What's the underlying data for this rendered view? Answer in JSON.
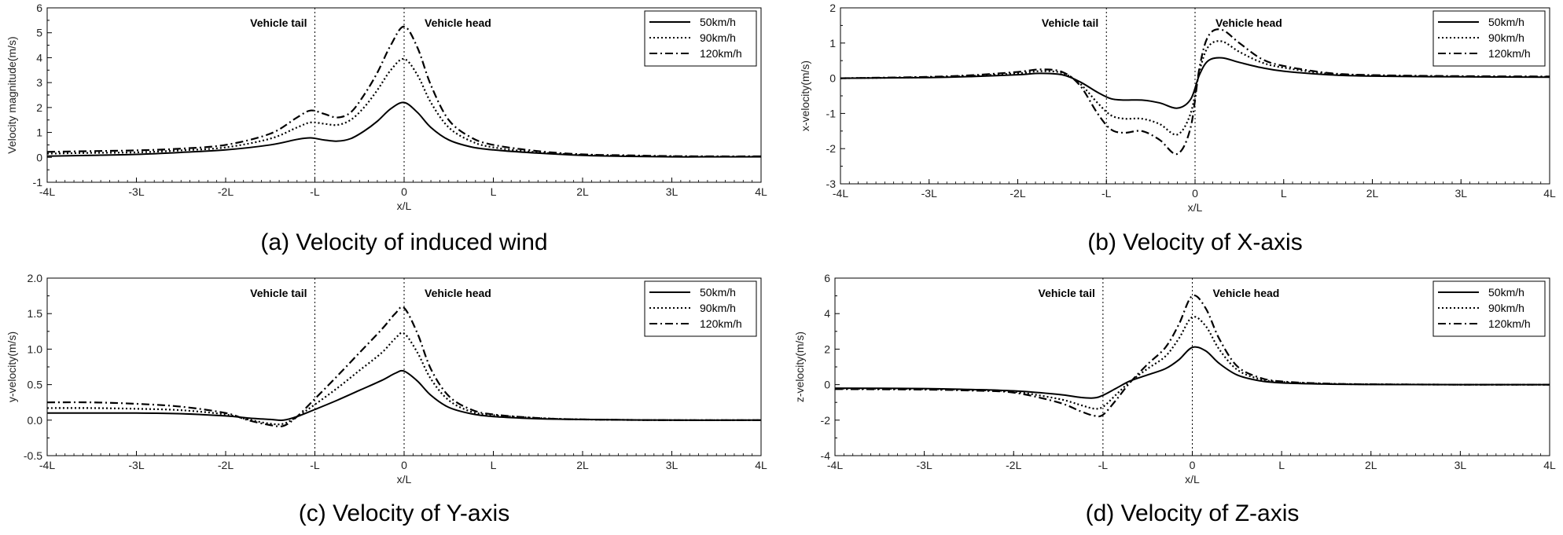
{
  "chart_data": [
    {
      "type": "line",
      "caption": "(a) Velocity of induced wind",
      "xlabel": "x/L",
      "ylabel": "Velocity magnitude(m/s)",
      "xlim": [
        -4,
        4
      ],
      "ylim": [
        -1,
        6
      ],
      "yticks": [
        -1,
        0,
        1,
        2,
        3,
        4,
        5,
        6
      ],
      "yticklabels": [
        "-1",
        "0",
        "1",
        "2",
        "3",
        "4",
        "5",
        "6"
      ],
      "xticks": [
        -4,
        -3,
        -2,
        -1,
        0,
        1,
        2,
        3,
        4
      ],
      "xticklabels": [
        "-4L",
        "-3L",
        "-2L",
        "-L",
        "0",
        "L",
        "2L",
        "3L",
        "4L"
      ],
      "legend_position": "top-right",
      "annotations": [
        {
          "text": "Vehicle tail",
          "x": -1
        },
        {
          "text": "Vehicle head",
          "x": 0
        }
      ],
      "series": [
        {
          "name": "50km/h",
          "style": "solid",
          "x": [
            -4,
            -3.5,
            -3,
            -2.5,
            -2,
            -1.5,
            -1.2,
            -1.05,
            -0.9,
            -0.75,
            -0.6,
            -0.45,
            -0.3,
            -0.15,
            0,
            0.15,
            0.3,
            0.5,
            0.75,
            1,
            1.5,
            2,
            2.5,
            3,
            3.5,
            4
          ],
          "y": [
            0.05,
            0.08,
            0.12,
            0.2,
            0.3,
            0.5,
            0.72,
            0.78,
            0.7,
            0.65,
            0.75,
            1.05,
            1.45,
            1.95,
            2.2,
            1.8,
            1.2,
            0.7,
            0.42,
            0.3,
            0.17,
            0.08,
            0.04,
            0.02,
            0.02,
            0.02
          ]
        },
        {
          "name": "90km/h",
          "style": "dotted",
          "x": [
            -4,
            -3.5,
            -3,
            -2.5,
            -2,
            -1.5,
            -1.2,
            -1.05,
            -0.9,
            -0.75,
            -0.6,
            -0.45,
            -0.3,
            -0.15,
            0,
            0.15,
            0.3,
            0.5,
            0.75,
            1,
            1.5,
            2,
            2.5,
            3,
            3.5,
            4
          ],
          "y": [
            0.15,
            0.18,
            0.2,
            0.28,
            0.4,
            0.75,
            1.2,
            1.4,
            1.35,
            1.3,
            1.5,
            2.0,
            2.7,
            3.5,
            3.95,
            3.3,
            2.2,
            1.2,
            0.65,
            0.4,
            0.2,
            0.1,
            0.06,
            0.04,
            0.03,
            0.03
          ]
        },
        {
          "name": "120km/h",
          "style": "dashdot",
          "x": [
            -4,
            -3.5,
            -3,
            -2.5,
            -2,
            -1.5,
            -1.2,
            -1.05,
            -0.9,
            -0.75,
            -0.6,
            -0.45,
            -0.3,
            -0.15,
            0,
            0.15,
            0.3,
            0.5,
            0.75,
            1,
            1.5,
            2,
            2.5,
            3,
            3.5,
            4
          ],
          "y": [
            0.22,
            0.25,
            0.28,
            0.35,
            0.5,
            0.95,
            1.6,
            1.88,
            1.75,
            1.6,
            1.8,
            2.5,
            3.4,
            4.5,
            5.25,
            4.4,
            2.9,
            1.5,
            0.8,
            0.5,
            0.25,
            0.12,
            0.08,
            0.05,
            0.04,
            0.04
          ]
        }
      ]
    },
    {
      "type": "line",
      "caption": "(b) Velocity of X-axis",
      "xlabel": "x/L",
      "ylabel": "x-velocity(m/s)",
      "xlim": [
        -4,
        4
      ],
      "ylim": [
        -3,
        2
      ],
      "yticks": [
        -3,
        -2,
        -1,
        0,
        1,
        2
      ],
      "yticklabels": [
        "-3",
        "-2",
        "-1",
        "0",
        "1",
        "2"
      ],
      "xticks": [
        -4,
        -3,
        -2,
        -1,
        0,
        1,
        2,
        3,
        4
      ],
      "xticklabels": [
        "-4L",
        "-3L",
        "-2L",
        "-L",
        "0",
        "L",
        "2L",
        "3L",
        "4L"
      ],
      "legend_position": "top-right",
      "annotations": [
        {
          "text": "Vehicle tail",
          "x": -1
        },
        {
          "text": "Vehicle head",
          "x": 0
        }
      ],
      "series": [
        {
          "name": "50km/h",
          "style": "solid",
          "x": [
            -4,
            -3,
            -2.5,
            -2,
            -1.75,
            -1.5,
            -1.3,
            -1.1,
            -0.95,
            -0.8,
            -0.6,
            -0.4,
            -0.2,
            -0.05,
            0.05,
            0.15,
            0.3,
            0.5,
            0.75,
            1,
            1.5,
            2,
            3,
            4
          ],
          "y": [
            0,
            0.02,
            0.05,
            0.1,
            0.14,
            0.1,
            -0.1,
            -0.4,
            -0.58,
            -0.62,
            -0.62,
            -0.7,
            -0.85,
            -0.6,
            0.1,
            0.5,
            0.58,
            0.45,
            0.3,
            0.2,
            0.1,
            0.06,
            0.04,
            0.03
          ]
        },
        {
          "name": "90km/h",
          "style": "dotted",
          "x": [
            -4,
            -3,
            -2.5,
            -2,
            -1.75,
            -1.5,
            -1.3,
            -1.1,
            -0.95,
            -0.8,
            -0.6,
            -0.4,
            -0.2,
            -0.05,
            0.05,
            0.15,
            0.3,
            0.5,
            0.75,
            1,
            1.5,
            2,
            3,
            4
          ],
          "y": [
            0,
            0.03,
            0.07,
            0.14,
            0.2,
            0.15,
            -0.15,
            -0.7,
            -1.05,
            -1.15,
            -1.15,
            -1.3,
            -1.6,
            -1.0,
            0.2,
            0.9,
            1.05,
            0.75,
            0.45,
            0.3,
            0.13,
            0.08,
            0.05,
            0.04
          ]
        },
        {
          "name": "120km/h",
          "style": "dashdot",
          "x": [
            -4,
            -3,
            -2.5,
            -2,
            -1.75,
            -1.5,
            -1.3,
            -1.1,
            -0.95,
            -0.8,
            -0.6,
            -0.4,
            -0.2,
            -0.05,
            0.05,
            0.15,
            0.3,
            0.5,
            0.75,
            1,
            1.5,
            2,
            3,
            4
          ],
          "y": [
            0,
            0.04,
            0.09,
            0.18,
            0.25,
            0.18,
            -0.2,
            -1.0,
            -1.45,
            -1.55,
            -1.5,
            -1.75,
            -2.15,
            -1.4,
            0.3,
            1.2,
            1.38,
            1.0,
            0.55,
            0.35,
            0.15,
            0.09,
            0.06,
            0.05
          ]
        }
      ]
    },
    {
      "type": "line",
      "caption": "(c) Velocity of Y-axis",
      "xlabel": "x/L",
      "ylabel": "y-velocity(m/s)",
      "xlim": [
        -4,
        4
      ],
      "ylim": [
        -0.5,
        2.0
      ],
      "yticks": [
        -0.5,
        0,
        0.5,
        1,
        1.5,
        2
      ],
      "yticklabels": [
        "-0.5",
        "0.0",
        "0.5",
        "1.0",
        "1.5",
        "2.0"
      ],
      "xticks": [
        -4,
        -3,
        -2,
        -1,
        0,
        1,
        2,
        3,
        4
      ],
      "xticklabels": [
        "-4L",
        "-3L",
        "-2L",
        "-L",
        "0",
        "L",
        "2L",
        "3L",
        "4L"
      ],
      "legend_position": "top-right",
      "annotations": [
        {
          "text": "Vehicle tail",
          "x": -1
        },
        {
          "text": "Vehicle head",
          "x": 0
        }
      ],
      "series": [
        {
          "name": "50km/h",
          "style": "solid",
          "x": [
            -4,
            -3.5,
            -3,
            -2.5,
            -2,
            -1.75,
            -1.5,
            -1.35,
            -1.2,
            -1,
            -0.75,
            -0.5,
            -0.25,
            -0.1,
            0,
            0.15,
            0.3,
            0.5,
            0.75,
            1,
            1.5,
            2,
            3,
            4
          ],
          "y": [
            0.1,
            0.1,
            0.1,
            0.09,
            0.06,
            0.03,
            0.01,
            0.0,
            0.05,
            0.15,
            0.28,
            0.42,
            0.56,
            0.66,
            0.69,
            0.55,
            0.35,
            0.18,
            0.09,
            0.05,
            0.02,
            0.01,
            0.0,
            0.0
          ]
        },
        {
          "name": "90km/h",
          "style": "dotted",
          "x": [
            -4,
            -3.5,
            -3,
            -2.5,
            -2,
            -1.75,
            -1.5,
            -1.35,
            -1.2,
            -1,
            -0.75,
            -0.5,
            -0.25,
            -0.1,
            0,
            0.15,
            0.3,
            0.5,
            0.75,
            1,
            1.5,
            2,
            3,
            4
          ],
          "y": [
            0.17,
            0.17,
            0.16,
            0.14,
            0.08,
            0.01,
            -0.05,
            -0.05,
            0.05,
            0.22,
            0.45,
            0.7,
            0.95,
            1.15,
            1.22,
            0.95,
            0.58,
            0.28,
            0.12,
            0.07,
            0.03,
            0.01,
            0.0,
            0.0
          ]
        },
        {
          "name": "120km/h",
          "style": "dashdot",
          "x": [
            -4,
            -3.5,
            -3,
            -2.5,
            -2,
            -1.75,
            -1.5,
            -1.35,
            -1.2,
            -1,
            -0.75,
            -0.5,
            -0.25,
            -0.1,
            0,
            0.15,
            0.3,
            0.5,
            0.75,
            1,
            1.5,
            2,
            3,
            4
          ],
          "y": [
            0.25,
            0.25,
            0.23,
            0.19,
            0.1,
            0.0,
            -0.07,
            -0.08,
            0.05,
            0.3,
            0.62,
            0.95,
            1.28,
            1.5,
            1.58,
            1.22,
            0.72,
            0.34,
            0.15,
            0.08,
            0.03,
            0.01,
            0.0,
            0.0
          ]
        }
      ]
    },
    {
      "type": "line",
      "caption": "(d) Velocity of Z-axis",
      "xlabel": "x/L",
      "ylabel": "z-velocity(m/s)",
      "xlim": [
        -4,
        4
      ],
      "ylim": [
        -4,
        6
      ],
      "yticks": [
        -4,
        -2,
        0,
        2,
        4,
        6
      ],
      "yticklabels": [
        "-4",
        "-2",
        "0",
        "2",
        "4",
        "6"
      ],
      "xticks": [
        -4,
        -3,
        -2,
        -1,
        0,
        1,
        2,
        3,
        4
      ],
      "xticklabels": [
        "-4L",
        "-3L",
        "-2L",
        "-L",
        "0",
        "L",
        "2L",
        "3L",
        "4L"
      ],
      "legend_position": "top-right",
      "annotations": [
        {
          "text": "Vehicle tail",
          "x": -1
        },
        {
          "text": "Vehicle head",
          "x": 0
        }
      ],
      "series": [
        {
          "name": "50km/h",
          "style": "solid",
          "x": [
            -4,
            -3,
            -2.5,
            -2,
            -1.5,
            -1.25,
            -1.1,
            -1.0,
            -0.85,
            -0.7,
            -0.5,
            -0.3,
            -0.15,
            0,
            0.15,
            0.3,
            0.5,
            0.75,
            1,
            1.5,
            2,
            3,
            4
          ],
          "y": [
            -0.2,
            -0.22,
            -0.27,
            -0.35,
            -0.55,
            -0.72,
            -0.75,
            -0.6,
            -0.2,
            0.2,
            0.55,
            0.9,
            1.4,
            2.1,
            1.9,
            1.2,
            0.55,
            0.22,
            0.1,
            0.03,
            0.01,
            0.0,
            0.0
          ]
        },
        {
          "name": "90km/h",
          "style": "dotted",
          "x": [
            -4,
            -3,
            -2.5,
            -2,
            -1.5,
            -1.25,
            -1.1,
            -1.0,
            -0.85,
            -0.7,
            -0.5,
            -0.3,
            -0.15,
            0,
            0.15,
            0.3,
            0.5,
            0.75,
            1,
            1.5,
            2,
            3,
            4
          ],
          "y": [
            -0.22,
            -0.25,
            -0.3,
            -0.4,
            -0.8,
            -1.15,
            -1.35,
            -1.25,
            -0.55,
            0.15,
            0.9,
            1.6,
            2.6,
            3.8,
            3.3,
            2.0,
            0.85,
            0.32,
            0.15,
            0.05,
            0.02,
            0.0,
            0.0
          ]
        },
        {
          "name": "120km/h",
          "style": "dashdot",
          "x": [
            -4,
            -3,
            -2.5,
            -2,
            -1.5,
            -1.25,
            -1.1,
            -1.0,
            -0.85,
            -0.7,
            -0.5,
            -0.3,
            -0.15,
            0,
            0.15,
            0.3,
            0.5,
            0.75,
            1,
            1.5,
            2,
            3,
            4
          ],
          "y": [
            -0.25,
            -0.28,
            -0.33,
            -0.45,
            -1.0,
            -1.5,
            -1.75,
            -1.7,
            -0.85,
            0.1,
            1.15,
            2.1,
            3.4,
            5.0,
            4.3,
            2.6,
            1.05,
            0.4,
            0.18,
            0.06,
            0.02,
            0.0,
            0.0
          ]
        }
      ]
    }
  ]
}
